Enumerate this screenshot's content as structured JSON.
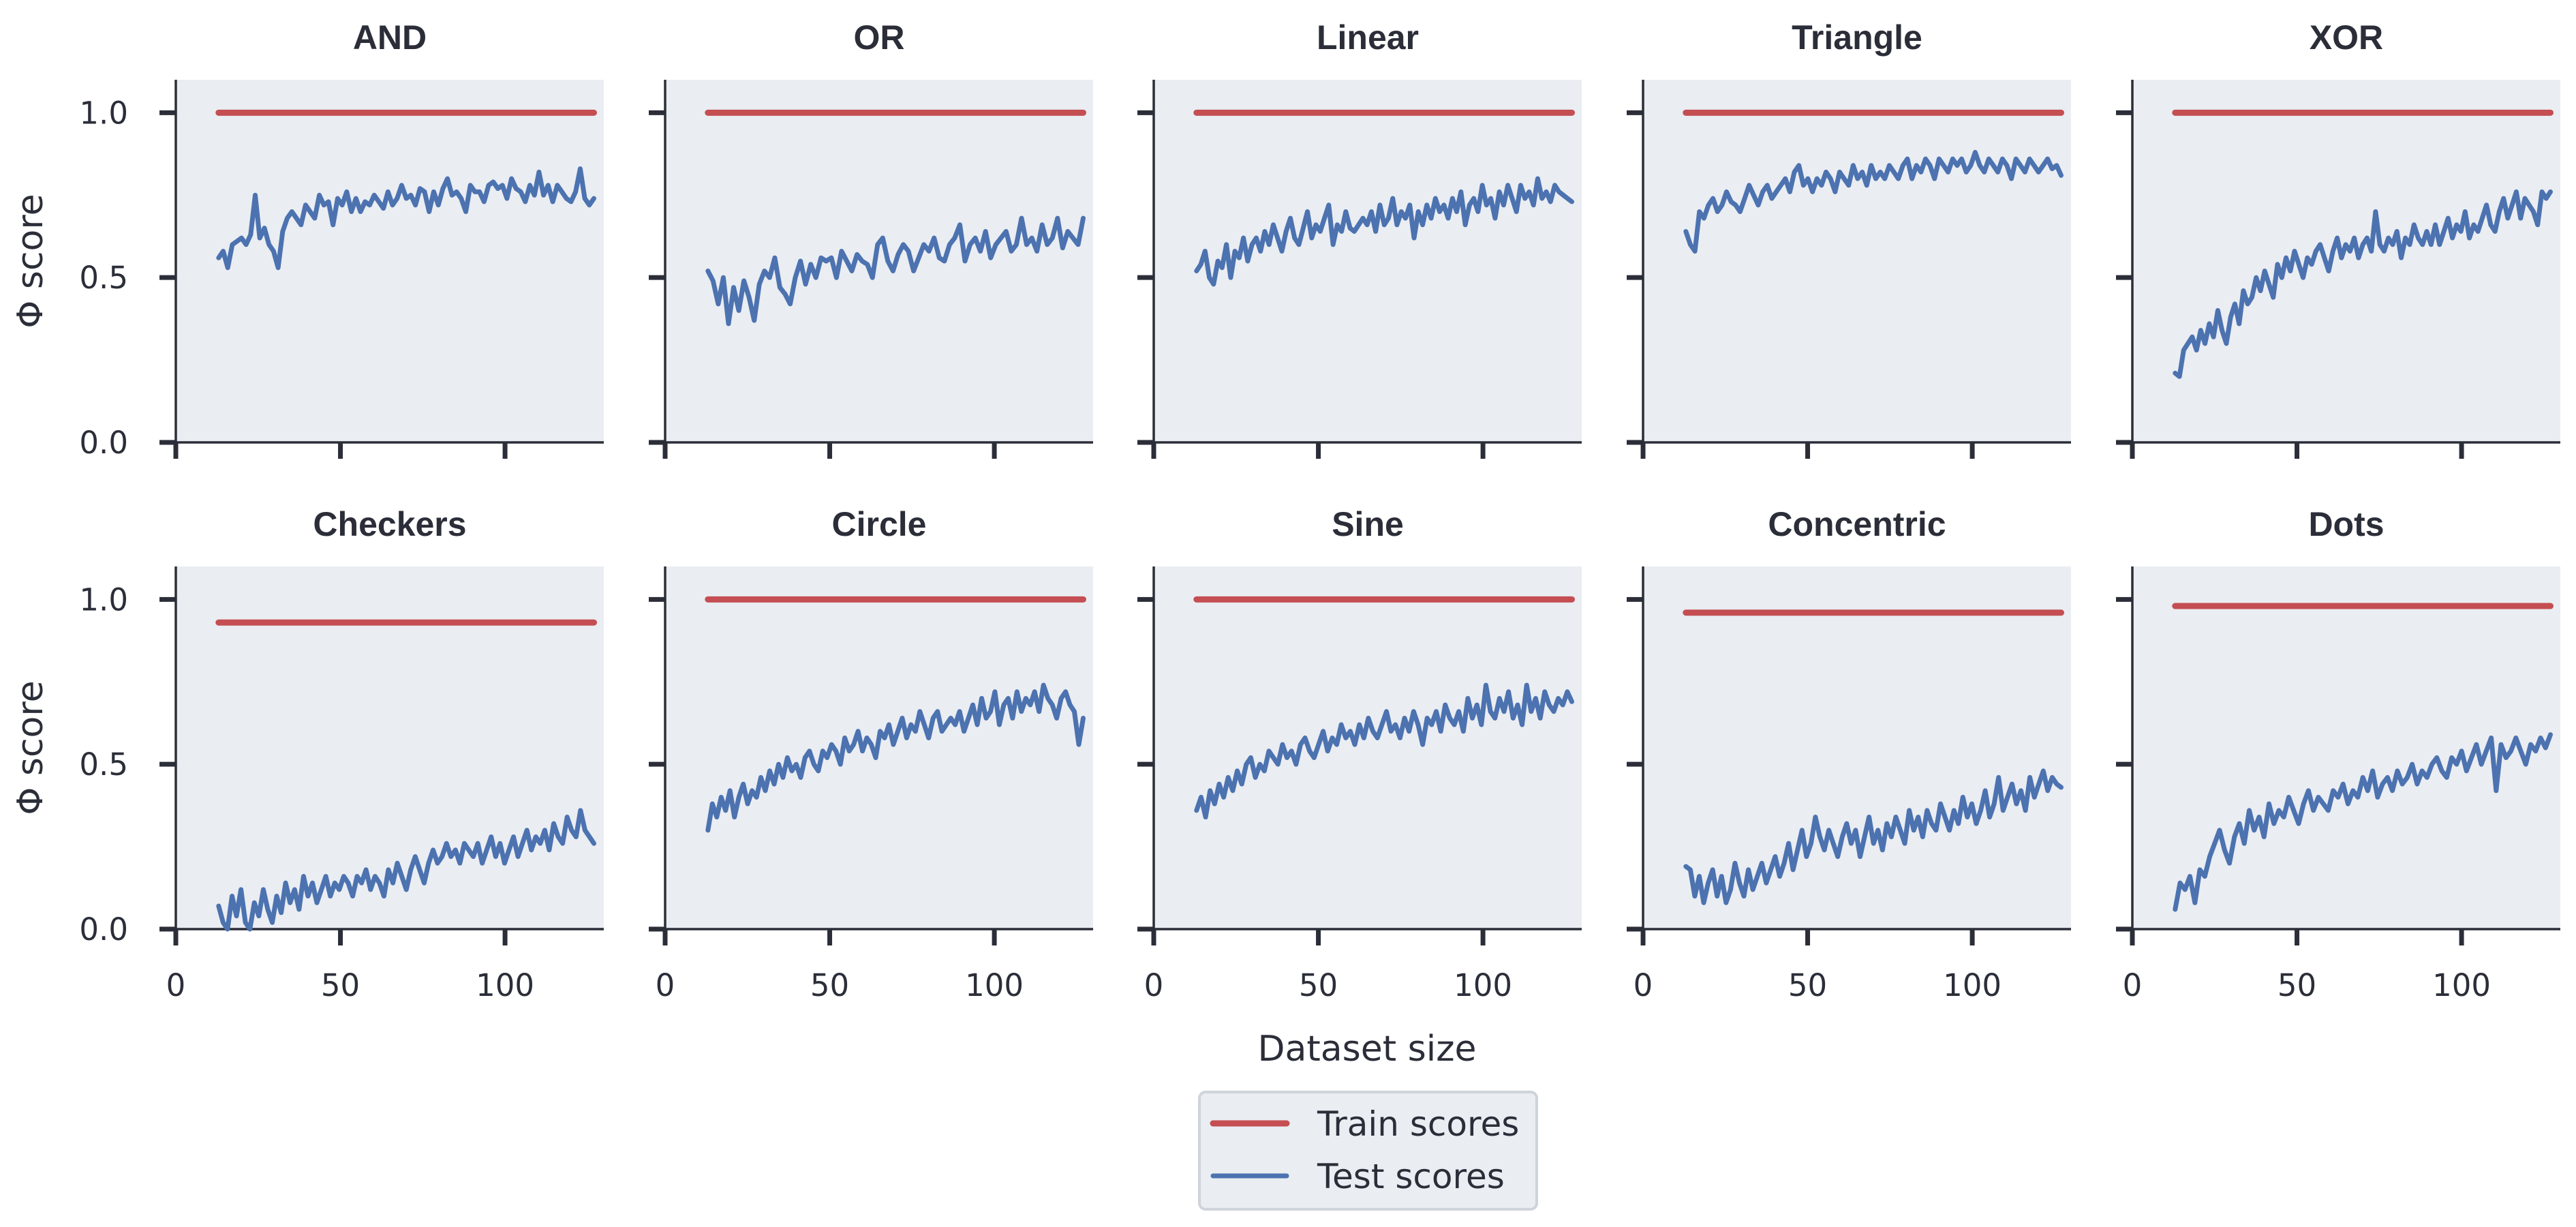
{
  "chart_data": {
    "type": "line",
    "layout": {
      "rows": 2,
      "cols": 5
    },
    "xlim": [
      0,
      130
    ],
    "ylim": [
      0,
      1.1
    ],
    "x_ticks": [
      0,
      50,
      100
    ],
    "y_ticks": [
      0.0,
      0.5,
      1.0
    ],
    "x_tick_labels": [
      "0",
      "50",
      "100"
    ],
    "y_tick_labels": [
      "0.0",
      "0.5",
      "1.0"
    ],
    "xlabel": "Dataset size",
    "ylabel": "Φ score",
    "x_start": 13,
    "x_end": 127,
    "grid": false,
    "legend": {
      "position": "bottom-center",
      "entries": [
        {
          "name": "Train scores",
          "color": "#c44e52"
        },
        {
          "name": "Test scores",
          "color": "#4c72b0"
        }
      ]
    },
    "colors": {
      "train": "#c44e52",
      "test": "#4c72b0",
      "background": "#eaedf2"
    },
    "panels": [
      {
        "title": "AND",
        "train": 1.0,
        "test": [
          0.56,
          0.58,
          0.53,
          0.6,
          0.61,
          0.62,
          0.6,
          0.63,
          0.75,
          0.62,
          0.65,
          0.6,
          0.58,
          0.53,
          0.64,
          0.68,
          0.7,
          0.68,
          0.66,
          0.72,
          0.7,
          0.68,
          0.75,
          0.72,
          0.73,
          0.66,
          0.74,
          0.72,
          0.76,
          0.7,
          0.74,
          0.7,
          0.73,
          0.72,
          0.75,
          0.73,
          0.71,
          0.76,
          0.72,
          0.74,
          0.78,
          0.74,
          0.75,
          0.72,
          0.77,
          0.76,
          0.7,
          0.76,
          0.72,
          0.77,
          0.8,
          0.75,
          0.76,
          0.74,
          0.7,
          0.78,
          0.76,
          0.76,
          0.73,
          0.78,
          0.79,
          0.77,
          0.78,
          0.74,
          0.8,
          0.77,
          0.76,
          0.73,
          0.78,
          0.75,
          0.82,
          0.75,
          0.78,
          0.73,
          0.78,
          0.76,
          0.74,
          0.73,
          0.76,
          0.83,
          0.74,
          0.72,
          0.74
        ]
      },
      {
        "title": "OR",
        "train": 1.0,
        "test": [
          0.52,
          0.49,
          0.42,
          0.5,
          0.36,
          0.47,
          0.4,
          0.49,
          0.44,
          0.37,
          0.48,
          0.52,
          0.5,
          0.56,
          0.47,
          0.45,
          0.42,
          0.5,
          0.55,
          0.48,
          0.54,
          0.5,
          0.56,
          0.55,
          0.56,
          0.5,
          0.58,
          0.55,
          0.52,
          0.57,
          0.55,
          0.54,
          0.5,
          0.6,
          0.62,
          0.55,
          0.52,
          0.57,
          0.6,
          0.58,
          0.52,
          0.56,
          0.6,
          0.58,
          0.62,
          0.56,
          0.55,
          0.6,
          0.62,
          0.66,
          0.55,
          0.6,
          0.62,
          0.58,
          0.64,
          0.56,
          0.6,
          0.62,
          0.64,
          0.58,
          0.6,
          0.68,
          0.6,
          0.62,
          0.58,
          0.66,
          0.6,
          0.62,
          0.68,
          0.59,
          0.64,
          0.62,
          0.6,
          0.68
        ]
      },
      {
        "title": "Linear",
        "train": 1.0,
        "test": [
          0.52,
          0.54,
          0.58,
          0.5,
          0.48,
          0.55,
          0.53,
          0.6,
          0.5,
          0.58,
          0.56,
          0.62,
          0.55,
          0.6,
          0.62,
          0.58,
          0.64,
          0.6,
          0.66,
          0.62,
          0.58,
          0.64,
          0.68,
          0.62,
          0.6,
          0.65,
          0.7,
          0.62,
          0.66,
          0.64,
          0.68,
          0.72,
          0.6,
          0.66,
          0.64,
          0.7,
          0.65,
          0.64,
          0.66,
          0.68,
          0.66,
          0.7,
          0.64,
          0.72,
          0.66,
          0.68,
          0.74,
          0.66,
          0.7,
          0.68,
          0.72,
          0.62,
          0.7,
          0.66,
          0.72,
          0.68,
          0.74,
          0.7,
          0.72,
          0.68,
          0.74,
          0.7,
          0.76,
          0.66,
          0.72,
          0.74,
          0.7,
          0.78,
          0.72,
          0.74,
          0.68,
          0.76,
          0.72,
          0.78,
          0.74,
          0.7,
          0.78,
          0.74,
          0.76,
          0.72,
          0.8,
          0.74,
          0.76,
          0.73,
          0.78,
          0.76,
          0.75,
          0.74,
          0.73
        ]
      },
      {
        "title": "Triangle",
        "train": 1.0,
        "test": [
          0.64,
          0.6,
          0.58,
          0.7,
          0.68,
          0.72,
          0.74,
          0.7,
          0.72,
          0.76,
          0.73,
          0.72,
          0.7,
          0.74,
          0.78,
          0.75,
          0.72,
          0.76,
          0.78,
          0.74,
          0.76,
          0.78,
          0.8,
          0.76,
          0.82,
          0.84,
          0.78,
          0.8,
          0.76,
          0.8,
          0.78,
          0.82,
          0.8,
          0.76,
          0.82,
          0.8,
          0.78,
          0.84,
          0.8,
          0.82,
          0.78,
          0.84,
          0.8,
          0.82,
          0.8,
          0.84,
          0.82,
          0.8,
          0.84,
          0.86,
          0.8,
          0.84,
          0.82,
          0.86,
          0.84,
          0.8,
          0.86,
          0.84,
          0.82,
          0.86,
          0.84,
          0.86,
          0.82,
          0.84,
          0.88,
          0.84,
          0.82,
          0.86,
          0.84,
          0.82,
          0.86,
          0.84,
          0.8,
          0.86,
          0.84,
          0.82,
          0.86,
          0.84,
          0.82,
          0.84,
          0.86,
          0.83,
          0.84,
          0.81
        ]
      },
      {
        "title": "XOR",
        "train": 1.0,
        "test": [
          0.21,
          0.2,
          0.28,
          0.3,
          0.32,
          0.28,
          0.34,
          0.3,
          0.36,
          0.32,
          0.4,
          0.34,
          0.3,
          0.38,
          0.42,
          0.36,
          0.46,
          0.42,
          0.44,
          0.5,
          0.46,
          0.52,
          0.48,
          0.44,
          0.54,
          0.5,
          0.56,
          0.52,
          0.58,
          0.54,
          0.5,
          0.56,
          0.54,
          0.58,
          0.6,
          0.56,
          0.52,
          0.58,
          0.62,
          0.56,
          0.6,
          0.58,
          0.62,
          0.56,
          0.6,
          0.62,
          0.58,
          0.7,
          0.6,
          0.58,
          0.62,
          0.6,
          0.64,
          0.56,
          0.62,
          0.6,
          0.66,
          0.62,
          0.6,
          0.64,
          0.6,
          0.66,
          0.6,
          0.64,
          0.68,
          0.62,
          0.66,
          0.64,
          0.7,
          0.62,
          0.66,
          0.64,
          0.68,
          0.72,
          0.66,
          0.64,
          0.7,
          0.74,
          0.68,
          0.72,
          0.76,
          0.68,
          0.74,
          0.72,
          0.7,
          0.66,
          0.76,
          0.74,
          0.76
        ]
      },
      {
        "title": "Checkers",
        "train": 0.93,
        "test": [
          0.07,
          0.02,
          0.0,
          0.1,
          0.04,
          0.12,
          0.02,
          0.0,
          0.08,
          0.04,
          0.12,
          0.06,
          0.02,
          0.1,
          0.05,
          0.14,
          0.08,
          0.12,
          0.06,
          0.16,
          0.1,
          0.14,
          0.08,
          0.12,
          0.16,
          0.1,
          0.14,
          0.12,
          0.16,
          0.14,
          0.1,
          0.16,
          0.14,
          0.18,
          0.12,
          0.16,
          0.14,
          0.1,
          0.18,
          0.14,
          0.2,
          0.16,
          0.12,
          0.18,
          0.22,
          0.18,
          0.14,
          0.2,
          0.24,
          0.2,
          0.22,
          0.26,
          0.22,
          0.24,
          0.2,
          0.26,
          0.24,
          0.22,
          0.26,
          0.2,
          0.24,
          0.28,
          0.22,
          0.26,
          0.2,
          0.24,
          0.28,
          0.22,
          0.26,
          0.3,
          0.24,
          0.28,
          0.26,
          0.3,
          0.24,
          0.32,
          0.28,
          0.26,
          0.34,
          0.3,
          0.28,
          0.36,
          0.3,
          0.28,
          0.26
        ]
      },
      {
        "title": "Circle",
        "train": 1.0,
        "test": [
          0.3,
          0.38,
          0.34,
          0.4,
          0.36,
          0.42,
          0.34,
          0.4,
          0.44,
          0.38,
          0.42,
          0.4,
          0.46,
          0.42,
          0.48,
          0.44,
          0.5,
          0.46,
          0.52,
          0.48,
          0.5,
          0.46,
          0.52,
          0.54,
          0.5,
          0.48,
          0.54,
          0.52,
          0.56,
          0.54,
          0.5,
          0.58,
          0.54,
          0.56,
          0.6,
          0.54,
          0.58,
          0.56,
          0.52,
          0.6,
          0.58,
          0.62,
          0.56,
          0.6,
          0.64,
          0.58,
          0.62,
          0.6,
          0.66,
          0.62,
          0.58,
          0.64,
          0.66,
          0.6,
          0.62,
          0.64,
          0.62,
          0.66,
          0.6,
          0.64,
          0.68,
          0.62,
          0.7,
          0.64,
          0.66,
          0.72,
          0.62,
          0.68,
          0.7,
          0.64,
          0.72,
          0.66,
          0.7,
          0.68,
          0.72,
          0.66,
          0.74,
          0.7,
          0.68,
          0.64,
          0.7,
          0.72,
          0.68,
          0.66,
          0.56,
          0.64
        ]
      },
      {
        "title": "Sine",
        "train": 1.0,
        "test": [
          0.36,
          0.4,
          0.34,
          0.42,
          0.38,
          0.44,
          0.4,
          0.46,
          0.42,
          0.48,
          0.44,
          0.5,
          0.52,
          0.46,
          0.5,
          0.48,
          0.54,
          0.52,
          0.5,
          0.56,
          0.52,
          0.54,
          0.5,
          0.56,
          0.58,
          0.54,
          0.52,
          0.56,
          0.6,
          0.54,
          0.58,
          0.56,
          0.62,
          0.58,
          0.6,
          0.56,
          0.62,
          0.58,
          0.64,
          0.6,
          0.58,
          0.62,
          0.66,
          0.6,
          0.62,
          0.58,
          0.64,
          0.6,
          0.66,
          0.62,
          0.56,
          0.64,
          0.62,
          0.66,
          0.6,
          0.68,
          0.64,
          0.62,
          0.66,
          0.6,
          0.7,
          0.64,
          0.68,
          0.62,
          0.74,
          0.66,
          0.64,
          0.7,
          0.66,
          0.72,
          0.64,
          0.68,
          0.62,
          0.74,
          0.66,
          0.7,
          0.64,
          0.72,
          0.68,
          0.66,
          0.7,
          0.68,
          0.72,
          0.69
        ]
      },
      {
        "title": "Concentric",
        "train": 0.96,
        "test": [
          0.19,
          0.18,
          0.1,
          0.16,
          0.08,
          0.14,
          0.18,
          0.1,
          0.16,
          0.08,
          0.12,
          0.2,
          0.14,
          0.1,
          0.18,
          0.12,
          0.16,
          0.2,
          0.14,
          0.18,
          0.22,
          0.16,
          0.2,
          0.26,
          0.18,
          0.24,
          0.3,
          0.22,
          0.26,
          0.34,
          0.28,
          0.24,
          0.3,
          0.26,
          0.22,
          0.28,
          0.32,
          0.26,
          0.3,
          0.22,
          0.28,
          0.34,
          0.26,
          0.3,
          0.24,
          0.32,
          0.28,
          0.34,
          0.3,
          0.26,
          0.36,
          0.3,
          0.34,
          0.28,
          0.36,
          0.32,
          0.3,
          0.38,
          0.34,
          0.3,
          0.36,
          0.32,
          0.4,
          0.34,
          0.38,
          0.32,
          0.36,
          0.42,
          0.34,
          0.38,
          0.46,
          0.36,
          0.4,
          0.44,
          0.38,
          0.42,
          0.36,
          0.46,
          0.4,
          0.44,
          0.48,
          0.42,
          0.46,
          0.44,
          0.43
        ]
      },
      {
        "title": "Dots",
        "train": 0.98,
        "test": [
          0.06,
          0.14,
          0.12,
          0.16,
          0.08,
          0.18,
          0.16,
          0.22,
          0.26,
          0.3,
          0.24,
          0.2,
          0.28,
          0.32,
          0.26,
          0.36,
          0.3,
          0.34,
          0.28,
          0.38,
          0.32,
          0.36,
          0.34,
          0.4,
          0.36,
          0.32,
          0.38,
          0.42,
          0.36,
          0.4,
          0.38,
          0.36,
          0.42,
          0.4,
          0.44,
          0.38,
          0.42,
          0.4,
          0.46,
          0.42,
          0.48,
          0.4,
          0.44,
          0.46,
          0.42,
          0.48,
          0.44,
          0.46,
          0.5,
          0.44,
          0.48,
          0.46,
          0.5,
          0.52,
          0.48,
          0.46,
          0.52,
          0.5,
          0.54,
          0.48,
          0.52,
          0.56,
          0.5,
          0.54,
          0.58,
          0.42,
          0.56,
          0.52,
          0.54,
          0.58,
          0.54,
          0.5,
          0.56,
          0.54,
          0.58,
          0.55,
          0.59
        ]
      }
    ]
  }
}
